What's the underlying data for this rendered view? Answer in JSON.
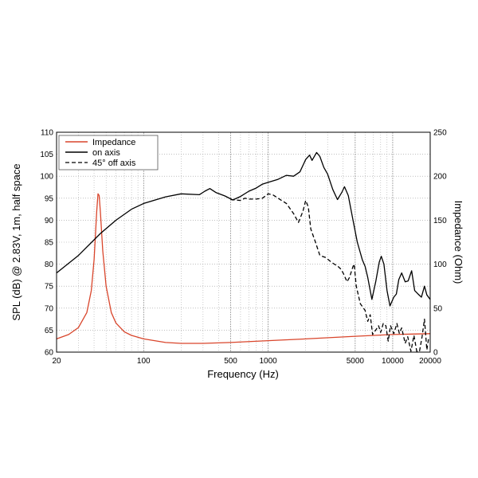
{
  "chart_data": {
    "type": "line",
    "xlabel": "Frequency (Hz)",
    "ylabel_left": "SPL (dB) @ 2.83V, 1m, half space",
    "ylabel_right": "Impedance (Ohm)",
    "x_scale": "log",
    "xlim": [
      20,
      20000
    ],
    "ylim_left": [
      60,
      110
    ],
    "ylim_right": [
      0,
      250
    ],
    "x_ticks": [
      20,
      100,
      500,
      1000,
      5000,
      10000,
      20000
    ],
    "x_tick_labels": [
      "20",
      "100",
      "500",
      "1000",
      "5000",
      "10000",
      "20000"
    ],
    "y_left_ticks": [
      60,
      65,
      70,
      75,
      80,
      85,
      90,
      95,
      100,
      105,
      110
    ],
    "y_left_tick_labels": [
      "60",
      "65",
      "70",
      "75",
      "80",
      "85",
      "90",
      "95",
      "100",
      "105",
      "110"
    ],
    "y_right_ticks": [
      0,
      50,
      100,
      150,
      200,
      250
    ],
    "y_right_tick_labels": [
      "0",
      "50",
      "100",
      "150",
      "200",
      "250"
    ],
    "grid": true,
    "legend_position": "top-left",
    "series": [
      {
        "name": "Impedance",
        "axis": "right",
        "color": "#d9452b",
        "dash": "solid",
        "points": [
          [
            20,
            15
          ],
          [
            25,
            20
          ],
          [
            30,
            28
          ],
          [
            35,
            45
          ],
          [
            38,
            70
          ],
          [
            40,
            105
          ],
          [
            42,
            160
          ],
          [
            43,
            180
          ],
          [
            44,
            178
          ],
          [
            45,
            158
          ],
          [
            47,
            115
          ],
          [
            50,
            75
          ],
          [
            55,
            45
          ],
          [
            60,
            33
          ],
          [
            70,
            23
          ],
          [
            80,
            19
          ],
          [
            100,
            15
          ],
          [
            150,
            11
          ],
          [
            200,
            10
          ],
          [
            300,
            10
          ],
          [
            500,
            11
          ],
          [
            1000,
            13
          ],
          [
            2000,
            15
          ],
          [
            5000,
            18
          ],
          [
            10000,
            20
          ],
          [
            20000,
            21
          ]
        ]
      },
      {
        "name": "on axis",
        "axis": "left",
        "color": "#000000",
        "dash": "solid",
        "points": [
          [
            20,
            78
          ],
          [
            30,
            82
          ],
          [
            45,
            87
          ],
          [
            60,
            90
          ],
          [
            80,
            92.5
          ],
          [
            100,
            93.8
          ],
          [
            150,
            95.3
          ],
          [
            200,
            96
          ],
          [
            280,
            95.8
          ],
          [
            310,
            96.6
          ],
          [
            340,
            97.2
          ],
          [
            380,
            96.3
          ],
          [
            450,
            95.5
          ],
          [
            520,
            94.6
          ],
          [
            600,
            95.4
          ],
          [
            700,
            96.6
          ],
          [
            800,
            97.3
          ],
          [
            900,
            98.2
          ],
          [
            1000,
            98.6
          ],
          [
            1200,
            99.3
          ],
          [
            1400,
            100.2
          ],
          [
            1600,
            100
          ],
          [
            1800,
            101
          ],
          [
            2000,
            103.8
          ],
          [
            2150,
            104.8
          ],
          [
            2250,
            103.6
          ],
          [
            2450,
            105.4
          ],
          [
            2600,
            104.5
          ],
          [
            2800,
            102
          ],
          [
            3000,
            100.5
          ],
          [
            3300,
            97
          ],
          [
            3600,
            94.7
          ],
          [
            3900,
            96.3
          ],
          [
            4100,
            97.6
          ],
          [
            4400,
            95.6
          ],
          [
            4800,
            90
          ],
          [
            5200,
            85
          ],
          [
            5700,
            81
          ],
          [
            6000,
            79.5
          ],
          [
            6300,
            77
          ],
          [
            6800,
            72
          ],
          [
            7300,
            76
          ],
          [
            7800,
            80.5
          ],
          [
            8100,
            81.8
          ],
          [
            8500,
            80
          ],
          [
            9000,
            74
          ],
          [
            9500,
            70.5
          ],
          [
            10200,
            72.5
          ],
          [
            10700,
            73.2
          ],
          [
            11200,
            76.5
          ],
          [
            11800,
            78
          ],
          [
            12600,
            76
          ],
          [
            13300,
            76.2
          ],
          [
            14200,
            78.5
          ],
          [
            15000,
            74
          ],
          [
            16000,
            73.2
          ],
          [
            17000,
            72.5
          ],
          [
            18000,
            75
          ],
          [
            18800,
            73
          ],
          [
            20000,
            72
          ]
        ]
      },
      {
        "name": "45° off axis",
        "axis": "left",
        "color": "#000000",
        "dash": "dashed",
        "points": [
          [
            500,
            94.7
          ],
          [
            600,
            94.5
          ],
          [
            650,
            95
          ],
          [
            700,
            94.8
          ],
          [
            800,
            94.8
          ],
          [
            900,
            95
          ],
          [
            1000,
            96
          ],
          [
            1100,
            95.7
          ],
          [
            1200,
            95
          ],
          [
            1400,
            93.8
          ],
          [
            1600,
            91.5
          ],
          [
            1750,
            89.5
          ],
          [
            1900,
            92
          ],
          [
            2000,
            94.5
          ],
          [
            2100,
            93
          ],
          [
            2200,
            88
          ],
          [
            2400,
            85
          ],
          [
            2600,
            82
          ],
          [
            2900,
            81.5
          ],
          [
            3200,
            80.5
          ],
          [
            3400,
            80
          ],
          [
            3600,
            79.6
          ],
          [
            3800,
            79
          ],
          [
            4000,
            78
          ],
          [
            4300,
            76
          ],
          [
            4500,
            77
          ],
          [
            4800,
            79.5
          ],
          [
            4900,
            80
          ],
          [
            5100,
            75
          ],
          [
            5500,
            71
          ],
          [
            6000,
            69.5
          ],
          [
            6300,
            67
          ],
          [
            6600,
            68.5
          ],
          [
            6900,
            64
          ],
          [
            7300,
            65
          ],
          [
            7700,
            66
          ],
          [
            8000,
            64.5
          ],
          [
            8400,
            66.5
          ],
          [
            8800,
            66
          ],
          [
            9200,
            62.5
          ],
          [
            9600,
            66
          ],
          [
            10200,
            64.2
          ],
          [
            10800,
            66.5
          ],
          [
            11300,
            64.3
          ],
          [
            11800,
            65.5
          ],
          [
            12600,
            62
          ],
          [
            13200,
            63.5
          ],
          [
            14000,
            60.2
          ],
          [
            14800,
            63.8
          ],
          [
            15600,
            60.2
          ],
          [
            16400,
            60.1
          ],
          [
            17200,
            63.5
          ],
          [
            18000,
            67.5
          ],
          [
            18800,
            60.5
          ],
          [
            19400,
            63
          ]
        ]
      }
    ]
  }
}
